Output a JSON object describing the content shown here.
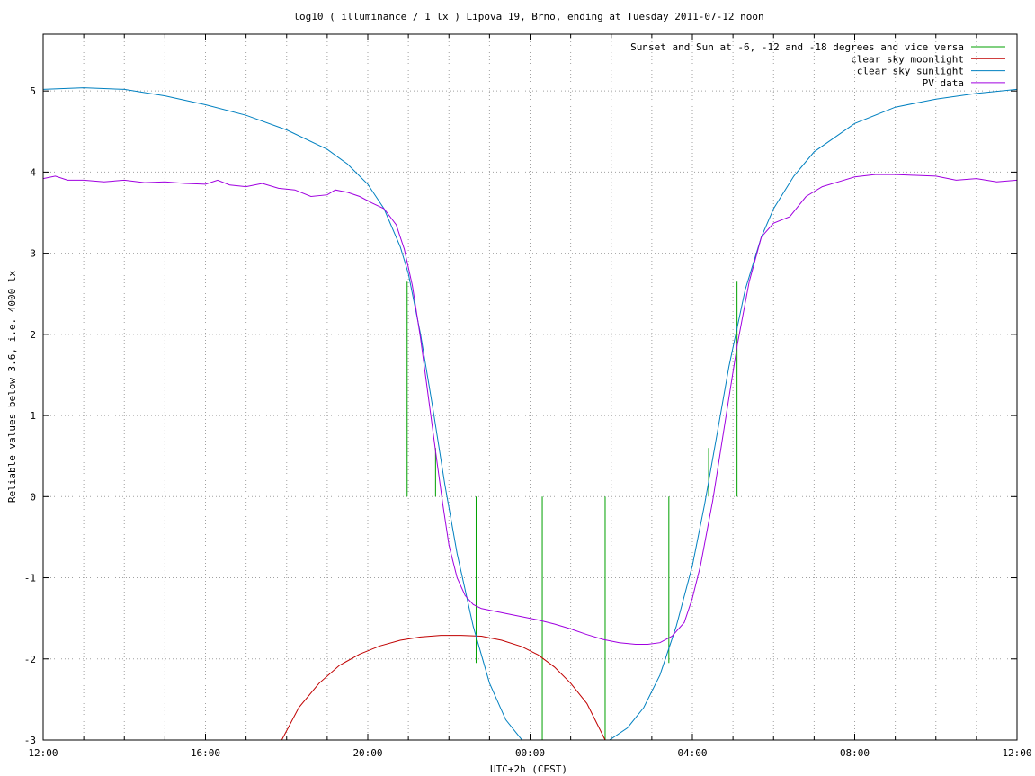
{
  "chart_data": {
    "type": "line",
    "title": "log10 ( illuminance / 1 lx ) Lipova 19, Brno, ending at Tuesday 2011-07-12 noon",
    "xlabel": "UTC+2h (CEST)",
    "ylabel": "Reliable values below 3.6, i.e. 4000 lx",
    "xlim": [
      12,
      36
    ],
    "ylim": [
      -3,
      5.7
    ],
    "grid": true,
    "legend_position": "top-right",
    "x_ticks": [
      {
        "value": 12,
        "label": "12:00"
      },
      {
        "value": 16,
        "label": "16:00"
      },
      {
        "value": 20,
        "label": "20:00"
      },
      {
        "value": 24,
        "label": "00:00"
      },
      {
        "value": 28,
        "label": "04:00"
      },
      {
        "value": 32,
        "label": "08:00"
      },
      {
        "value": 36,
        "label": "12:00"
      }
    ],
    "x_minor_step": 1,
    "y_ticks": [
      {
        "value": 5,
        "label": "5"
      },
      {
        "value": 4,
        "label": "4"
      },
      {
        "value": 3,
        "label": "3"
      },
      {
        "value": 2,
        "label": "2"
      },
      {
        "value": 1,
        "label": "1"
      },
      {
        "value": 0,
        "label": "0"
      },
      {
        "value": -1,
        "label": "-1"
      },
      {
        "value": -2,
        "label": "-2"
      },
      {
        "value": -3,
        "label": "-3"
      }
    ],
    "series": [
      {
        "name": "Sunset and Sun at -6, -12 and -18 degrees and vice versa",
        "color": "#00a000",
        "style": "vertical-markers",
        "markers": [
          {
            "x": 20.97,
            "y0": 0,
            "y1": 2.65
          },
          {
            "x": 21.67,
            "y0": 0,
            "y1": 0.6
          },
          {
            "x": 22.67,
            "y0": -2.05,
            "y1": 0
          },
          {
            "x": 24.3,
            "y0": -3,
            "y1": 0
          },
          {
            "x": 25.85,
            "y0": -3,
            "y1": 0
          },
          {
            "x": 27.42,
            "y0": -2.05,
            "y1": 0
          },
          {
            "x": 28.4,
            "y0": 0,
            "y1": 0.6
          },
          {
            "x": 29.1,
            "y0": 0,
            "y1": 2.65
          }
        ]
      },
      {
        "name": "clear sky moonlight",
        "color": "#c00000",
        "x": [
          17.88,
          18.3,
          18.8,
          19.3,
          19.8,
          20.3,
          20.8,
          21.3,
          21.8,
          22.3,
          22.8,
          23.3,
          23.8,
          24.2,
          24.6,
          25.0,
          25.4,
          25.65,
          25.85
        ],
        "y": [
          -3.0,
          -2.6,
          -2.3,
          -2.08,
          -1.94,
          -1.84,
          -1.77,
          -1.73,
          -1.71,
          -1.71,
          -1.72,
          -1.77,
          -1.85,
          -1.95,
          -2.1,
          -2.3,
          -2.55,
          -2.8,
          -3.0
        ]
      },
      {
        "name": "clear sky sunlight",
        "color": "#0080c0",
        "x": [
          12,
          13,
          14,
          15,
          16,
          17,
          18,
          19,
          19.5,
          20,
          20.4,
          20.8,
          21.0,
          21.3,
          21.6,
          21.9,
          22.2,
          22.6,
          23.0,
          23.4,
          23.8,
          24.2,
          24.5,
          25.0,
          25.5,
          25.9,
          26.4,
          26.8,
          27.2,
          27.6,
          28.0,
          28.3,
          28.6,
          28.9,
          29.3,
          29.7,
          30.0,
          30.5,
          31,
          32,
          33,
          34,
          35,
          36
        ],
        "y": [
          5.02,
          5.04,
          5.02,
          4.94,
          4.83,
          4.7,
          4.52,
          4.28,
          4.1,
          3.85,
          3.55,
          3.08,
          2.75,
          2.0,
          1.1,
          0.15,
          -0.7,
          -1.6,
          -2.3,
          -2.75,
          -3.0,
          -3.15,
          -3.2,
          -3.15,
          -3.08,
          -3.02,
          -2.85,
          -2.6,
          -2.2,
          -1.6,
          -0.85,
          -0.1,
          0.75,
          1.6,
          2.55,
          3.2,
          3.55,
          3.95,
          4.25,
          4.6,
          4.8,
          4.9,
          4.97,
          5.02
        ]
      },
      {
        "name": "PV data",
        "color": "#a000e0",
        "x": [
          12,
          12.3,
          12.6,
          13,
          13.5,
          14,
          14.5,
          15,
          15.5,
          16,
          16.3,
          16.6,
          17,
          17.4,
          17.8,
          18.2,
          18.6,
          19,
          19.2,
          19.5,
          19.8,
          20.1,
          20.4,
          20.7,
          20.9,
          21.1,
          21.3,
          21.5,
          21.7,
          21.85,
          22.0,
          22.2,
          22.4,
          22.6,
          22.8,
          23.1,
          23.4,
          23.8,
          24.2,
          24.6,
          25.0,
          25.4,
          25.8,
          26.2,
          26.6,
          26.9,
          27.2,
          27.5,
          27.8,
          28.0,
          28.2,
          28.5,
          28.8,
          29.1,
          29.4,
          29.7,
          30.0,
          30.4,
          30.8,
          31.2,
          31.6,
          32,
          32.5,
          33,
          33.5,
          34,
          34.5,
          35,
          35.5,
          36
        ],
        "y": [
          3.92,
          3.95,
          3.9,
          3.9,
          3.88,
          3.9,
          3.87,
          3.88,
          3.86,
          3.85,
          3.9,
          3.84,
          3.82,
          3.86,
          3.8,
          3.78,
          3.7,
          3.72,
          3.78,
          3.75,
          3.7,
          3.62,
          3.55,
          3.35,
          3.05,
          2.6,
          1.95,
          1.2,
          0.45,
          -0.1,
          -0.6,
          -1.0,
          -1.22,
          -1.33,
          -1.38,
          -1.41,
          -1.44,
          -1.48,
          -1.52,
          -1.57,
          -1.63,
          -1.7,
          -1.76,
          -1.8,
          -1.82,
          -1.82,
          -1.8,
          -1.72,
          -1.55,
          -1.25,
          -0.85,
          -0.05,
          0.9,
          1.85,
          2.65,
          3.2,
          3.37,
          3.45,
          3.7,
          3.82,
          3.88,
          3.94,
          3.97,
          3.97,
          3.96,
          3.95,
          3.9,
          3.92,
          3.88,
          3.9
        ]
      }
    ]
  }
}
